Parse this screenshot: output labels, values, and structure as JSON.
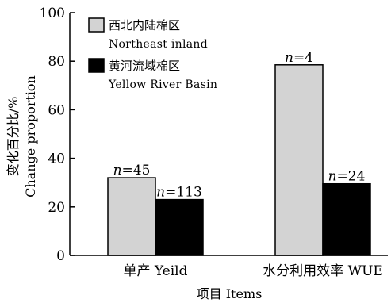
{
  "chart_data": {
    "type": "bar",
    "categories": [
      "单产 Yeild",
      "水分利用效率 WUE"
    ],
    "series": [
      {
        "name": "西北内陆棉区",
        "name_en": "Northeast inland",
        "color": "#d3d3d3",
        "values": [
          32,
          78.5
        ],
        "labels": [
          "n=45",
          "n=4"
        ]
      },
      {
        "name": "黄河流域棉区",
        "name_en": "Yellow River Basin",
        "color": "#000000",
        "values": [
          23,
          29.5
        ],
        "labels": [
          "n=113",
          "n=24"
        ]
      }
    ],
    "xlabel": "项目 Items",
    "ylabel_cn": "变化百分比/%",
    "ylabel_en": "Change proportion",
    "ylim": [
      0,
      100
    ],
    "yticks": [
      0,
      20,
      40,
      60,
      80,
      100
    ],
    "grid": false,
    "legend_position": "top-left"
  }
}
